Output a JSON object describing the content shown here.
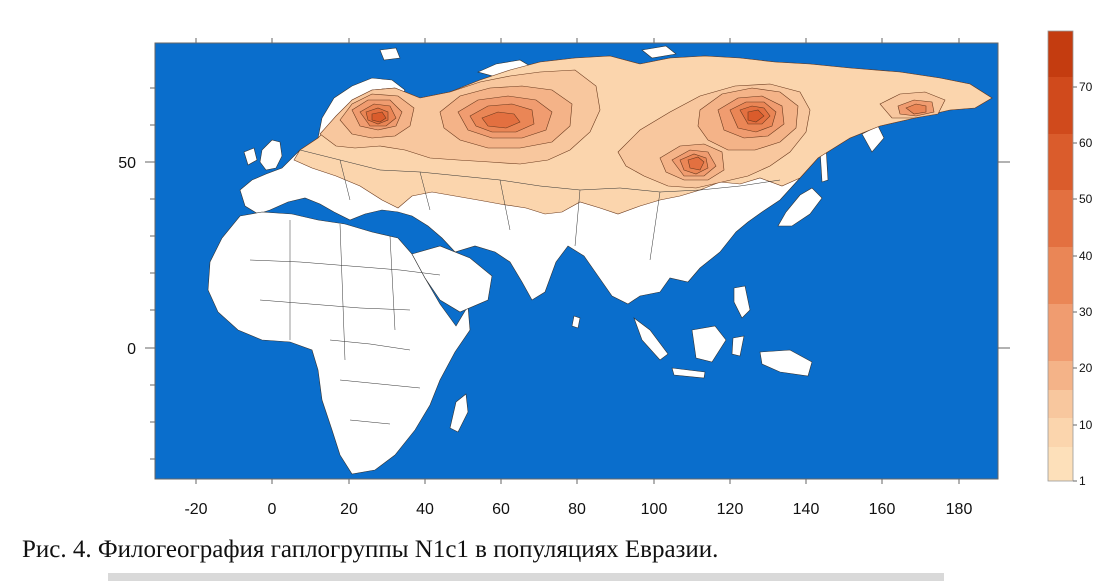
{
  "figure": {
    "caption": "Рис. 4. Филогеография гаплогруппы N1c1 в популяциях Евразии.",
    "colors": {
      "ocean": "#0a6ecc",
      "land": "#ffffff",
      "frame": "#666666"
    }
  },
  "map": {
    "x_ticks": [
      "-20",
      "0",
      "20",
      "40",
      "60",
      "80",
      "100",
      "120",
      "140",
      "160",
      "180"
    ],
    "y_ticks": [
      "50",
      "0"
    ],
    "x_range": [
      -30,
      190
    ],
    "y_range": [
      -35,
      82
    ]
  },
  "legend": {
    "labels": [
      "70",
      "60",
      "50",
      "40",
      "30",
      "20",
      "10",
      "1"
    ],
    "colors": [
      "#c43c10",
      "#d04a1c",
      "#da5c2c",
      "#e37040",
      "#ea8656",
      "#f09c70",
      "#f4b388",
      "#f8c79e",
      "#fbd5ad",
      "#fde4c4"
    ]
  }
}
